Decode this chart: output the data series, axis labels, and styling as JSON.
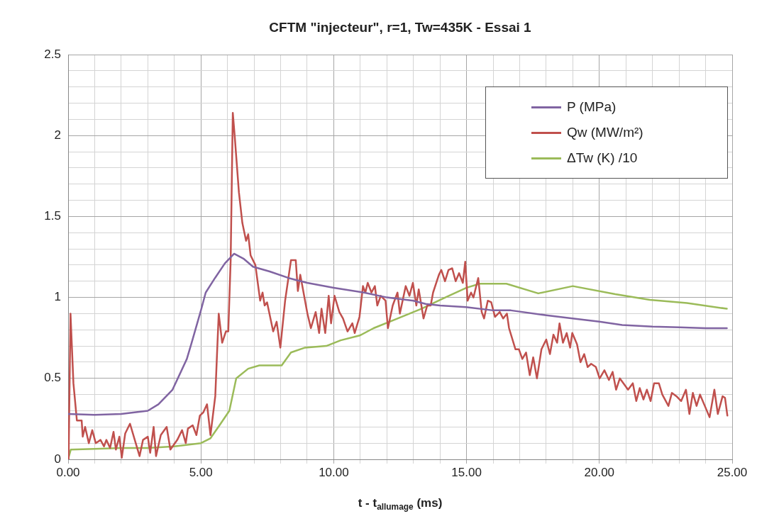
{
  "chart_data": {
    "type": "line",
    "title": "CFTM \"injecteur\", r=1, Tw=435K - Essai 1",
    "xlabel": "t - t$_{allumage}$ (ms)",
    "xlim": [
      0,
      25
    ],
    "ylim": [
      0,
      2.5
    ],
    "xticks": [
      {
        "value": 0,
        "label": "0.00"
      },
      {
        "value": 1,
        "label": null
      },
      {
        "value": 2,
        "label": null
      },
      {
        "value": 3,
        "label": null
      },
      {
        "value": 4,
        "label": null
      },
      {
        "value": 5,
        "label": "5.00"
      },
      {
        "value": 6,
        "label": null
      },
      {
        "value": 7,
        "label": null
      },
      {
        "value": 8,
        "label": null
      },
      {
        "value": 9,
        "label": null
      },
      {
        "value": 10,
        "label": "10.00"
      },
      {
        "value": 11,
        "label": null
      },
      {
        "value": 12,
        "label": null
      },
      {
        "value": 13,
        "label": null
      },
      {
        "value": 14,
        "label": null
      },
      {
        "value": 15,
        "label": "15.00"
      },
      {
        "value": 16,
        "label": null
      },
      {
        "value": 17,
        "label": null
      },
      {
        "value": 18,
        "label": null
      },
      {
        "value": 19,
        "label": null
      },
      {
        "value": 20,
        "label": "20.00"
      },
      {
        "value": 21,
        "label": null
      },
      {
        "value": 22,
        "label": null
      },
      {
        "value": 23,
        "label": null
      },
      {
        "value": 24,
        "label": null
      },
      {
        "value": 25,
        "label": "25.00"
      }
    ],
    "yticks": [
      0,
      {
        "value": 0.1,
        "label": null
      },
      {
        "value": 0.2,
        "label": null
      },
      {
        "value": 0.3,
        "label": null
      },
      {
        "value": 0.4,
        "label": null
      },
      0.5,
      {
        "value": 0.6,
        "label": null
      },
      {
        "value": 0.7,
        "label": null
      },
      {
        "value": 0.8,
        "label": null
      },
      {
        "value": 0.9,
        "label": null
      },
      1,
      {
        "value": 1.1,
        "label": null
      },
      {
        "value": 1.2,
        "label": null
      },
      {
        "value": 1.3,
        "label": null
      },
      {
        "value": 1.4,
        "label": null
      },
      1.5,
      {
        "value": 1.6,
        "label": null
      },
      {
        "value": 1.7,
        "label": null
      },
      {
        "value": 1.8,
        "label": null
      },
      {
        "value": 1.9,
        "label": null
      },
      2,
      {
        "value": 2.1,
        "label": null
      },
      {
        "value": 2.2,
        "label": null
      },
      {
        "value": 2.3,
        "label": null
      },
      {
        "value": 2.4,
        "label": null
      },
      2.5
    ],
    "grid": true,
    "legend": "top right",
    "marker": "none",
    "line_style": "solid",
    "series": [
      {
        "name": "P (MPa)",
        "color": "#8064a2",
        "x": [
          0,
          1,
          2,
          2.5,
          3,
          3.4,
          3.93,
          4.47,
          4.65,
          5,
          5.18,
          5.53,
          5.9,
          6.25,
          6.6,
          6.96,
          7.59,
          8.3,
          9,
          10,
          11.14,
          12,
          13,
          13.46,
          14,
          14.98,
          16,
          16.67,
          18,
          18.99,
          20,
          20.86,
          22,
          23,
          24,
          24.8
        ],
        "values": [
          0.28,
          0.275,
          0.28,
          0.29,
          0.3,
          0.34,
          0.43,
          0.62,
          0.72,
          0.92,
          1.03,
          1.12,
          1.21,
          1.27,
          1.24,
          1.19,
          1.16,
          1.12,
          1.09,
          1.06,
          1.03,
          1.0,
          0.98,
          0.96,
          0.95,
          0.94,
          0.92,
          0.92,
          0.89,
          0.87,
          0.85,
          0.83,
          0.82,
          0.815,
          0.81,
          0.81
        ]
      },
      {
        "name": "Qw (MW/m²)",
        "color": "#c0504d",
        "x": [
          0,
          0.02,
          0.09,
          0.2,
          0.33,
          0.51,
          0.55,
          0.64,
          0.78,
          0.91,
          1.04,
          1.22,
          1.35,
          1.44,
          1.58,
          1.71,
          1.8,
          1.93,
          2.02,
          2.15,
          2.33,
          2.51,
          2.69,
          2.82,
          3.0,
          3.09,
          3.22,
          3.31,
          3.49,
          3.71,
          3.85,
          4.11,
          4.29,
          4.43,
          4.51,
          4.69,
          4.83,
          4.96,
          5.09,
          5.23,
          5.36,
          5.54,
          5.67,
          5.8,
          5.94,
          6.03,
          6.12,
          6.2,
          6.27,
          6.43,
          6.56,
          6.7,
          6.78,
          6.87,
          7.05,
          7.23,
          7.32,
          7.4,
          7.49,
          7.72,
          7.85,
          7.99,
          8.17,
          8.39,
          8.57,
          8.65,
          8.74,
          9.01,
          9.14,
          9.32,
          9.45,
          9.54,
          9.68,
          9.81,
          9.9,
          10.03,
          10.21,
          10.35,
          10.52,
          10.7,
          10.79,
          10.97,
          11.1,
          11.19,
          11.28,
          11.42,
          11.55,
          11.64,
          11.77,
          11.95,
          12.04,
          12.22,
          12.4,
          12.49,
          12.71,
          12.85,
          12.98,
          13.11,
          13.2,
          13.38,
          13.52,
          13.65,
          13.74,
          13.96,
          14.05,
          14.19,
          14.32,
          14.46,
          14.59,
          14.72,
          14.86,
          14.95,
          15.04,
          15.17,
          15.26,
          15.44,
          15.57,
          15.66,
          15.8,
          15.93,
          16.07,
          16.25,
          16.38,
          16.52,
          16.6,
          16.84,
          16.97,
          17.1,
          17.24,
          17.38,
          17.51,
          17.65,
          17.82,
          18.0,
          18.14,
          18.27,
          18.41,
          18.5,
          18.63,
          18.77,
          18.9,
          18.98,
          19.16,
          19.29,
          19.43,
          19.56,
          19.69,
          19.87,
          20.01,
          20.19,
          20.36,
          20.5,
          20.63,
          20.77,
          20.95,
          21.08,
          21.26,
          21.39,
          21.52,
          21.66,
          21.79,
          21.93,
          22.06,
          22.24,
          22.37,
          22.6,
          22.73,
          22.9,
          23.08,
          23.26,
          23.39,
          23.52,
          23.66,
          23.79,
          23.97,
          24.15,
          24.33,
          24.46,
          24.64,
          24.73,
          24.82
        ],
        "values": [
          0,
          0.02,
          0.9,
          0.47,
          0.24,
          0.24,
          0.14,
          0.2,
          0.1,
          0.18,
          0.1,
          0.12,
          0.08,
          0.12,
          0.07,
          0.17,
          0.06,
          0.14,
          0.01,
          0.16,
          0.22,
          0.12,
          0.02,
          0.12,
          0.14,
          0.04,
          0.2,
          0.02,
          0.15,
          0.2,
          0.06,
          0.12,
          0.18,
          0.1,
          0.19,
          0.21,
          0.15,
          0.27,
          0.29,
          0.34,
          0.15,
          0.39,
          0.9,
          0.72,
          0.79,
          0.79,
          1.23,
          2.14,
          2.0,
          1.65,
          1.46,
          1.35,
          1.39,
          1.26,
          1.2,
          0.98,
          1.03,
          0.95,
          0.97,
          0.79,
          0.85,
          0.69,
          0.98,
          1.23,
          1.23,
          1.04,
          1.14,
          0.9,
          0.81,
          0.91,
          0.78,
          0.93,
          0.78,
          1.01,
          0.84,
          1.01,
          0.91,
          0.87,
          0.79,
          0.84,
          0.78,
          0.88,
          1.07,
          1.03,
          1.09,
          1.03,
          1.07,
          0.95,
          1.01,
          0.98,
          0.81,
          0.95,
          1.03,
          0.9,
          1.07,
          1.01,
          1.09,
          0.95,
          1.05,
          0.87,
          0.95,
          0.95,
          1.03,
          1.14,
          1.17,
          1.1,
          1.17,
          1.18,
          1.1,
          1.15,
          1.09,
          1.22,
          0.98,
          1.03,
          1.0,
          1.12,
          0.91,
          0.87,
          0.98,
          0.97,
          0.88,
          0.91,
          0.87,
          0.9,
          0.81,
          0.68,
          0.68,
          0.62,
          0.66,
          0.52,
          0.63,
          0.5,
          0.68,
          0.74,
          0.65,
          0.77,
          0.72,
          0.84,
          0.72,
          0.78,
          0.69,
          0.78,
          0.71,
          0.6,
          0.65,
          0.57,
          0.59,
          0.57,
          0.5,
          0.55,
          0.49,
          0.54,
          0.43,
          0.5,
          0.46,
          0.43,
          0.47,
          0.36,
          0.44,
          0.37,
          0.43,
          0.36,
          0.47,
          0.47,
          0.4,
          0.33,
          0.41,
          0.39,
          0.36,
          0.43,
          0.28,
          0.41,
          0.33,
          0.4,
          0.33,
          0.26,
          0.43,
          0.28,
          0.39,
          0.38,
          0.27
        ]
      },
      {
        "name": "ΔTw (K) /10",
        "color": "#9bbb59",
        "x": [
          0,
          0.1,
          1,
          2,
          3,
          4,
          5,
          5.36,
          5.7,
          6.07,
          6.33,
          6.78,
          7.2,
          8.04,
          8.39,
          8.92,
          9.72,
          10.26,
          10.98,
          11.5,
          12.4,
          13.3,
          14.2,
          15.0,
          15.5,
          16.5,
          17.7,
          19.0,
          20.6,
          21.9,
          23.3,
          24.8
        ],
        "values": [
          0,
          0.06,
          0.065,
          0.07,
          0.07,
          0.08,
          0.1,
          0.13,
          0.21,
          0.3,
          0.5,
          0.56,
          0.58,
          0.58,
          0.66,
          0.69,
          0.7,
          0.735,
          0.765,
          0.81,
          0.87,
          0.93,
          1.0,
          1.06,
          1.085,
          1.085,
          1.025,
          1.07,
          1.02,
          0.985,
          0.965,
          0.93
        ]
      }
    ]
  }
}
